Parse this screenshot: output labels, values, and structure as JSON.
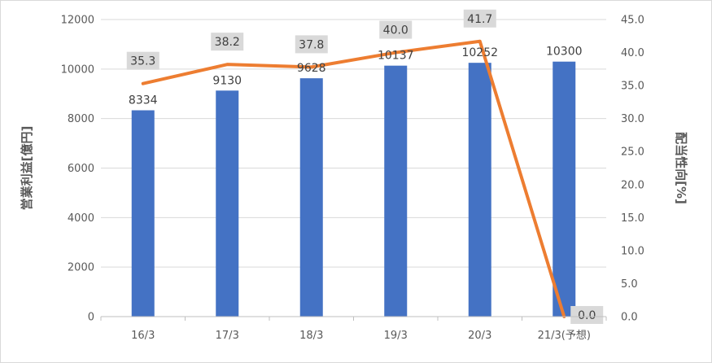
{
  "chart_data": {
    "type": "bar",
    "categories": [
      "16/3",
      "17/3",
      "18/3",
      "19/3",
      "20/3",
      "21/3(予想)"
    ],
    "series": [
      {
        "values": [
          8334,
          9130,
          9628,
          10137,
          10252,
          10300
        ],
        "type": "bar",
        "axis": "left",
        "color": "#4472C4"
      },
      {
        "values": [
          35.3,
          38.2,
          37.8,
          40.0,
          41.7,
          0.0
        ],
        "type": "line",
        "axis": "right",
        "color": "#ED7D31"
      }
    ],
    "bar_labels": [
      "8334",
      "9130",
      "9628",
      "10137",
      "10252",
      "10300"
    ],
    "line_labels": [
      "35.3",
      "38.2",
      "37.8",
      "40.0",
      "41.7",
      "0.0"
    ],
    "ylabel": "営業利益[億円]",
    "y2label": "配当性向[%]",
    "ylim": [
      0,
      12000
    ],
    "y2lim": [
      0,
      45
    ],
    "yticks": [
      "0",
      "2000",
      "4000",
      "6000",
      "8000",
      "10000",
      "12000"
    ],
    "y2ticks": [
      "0.0",
      "5.0",
      "10.0",
      "15.0",
      "20.0",
      "25.0",
      "30.0",
      "35.0",
      "40.0",
      "45.0"
    ],
    "grid": true,
    "label_box_color": "#D9D9D9"
  }
}
